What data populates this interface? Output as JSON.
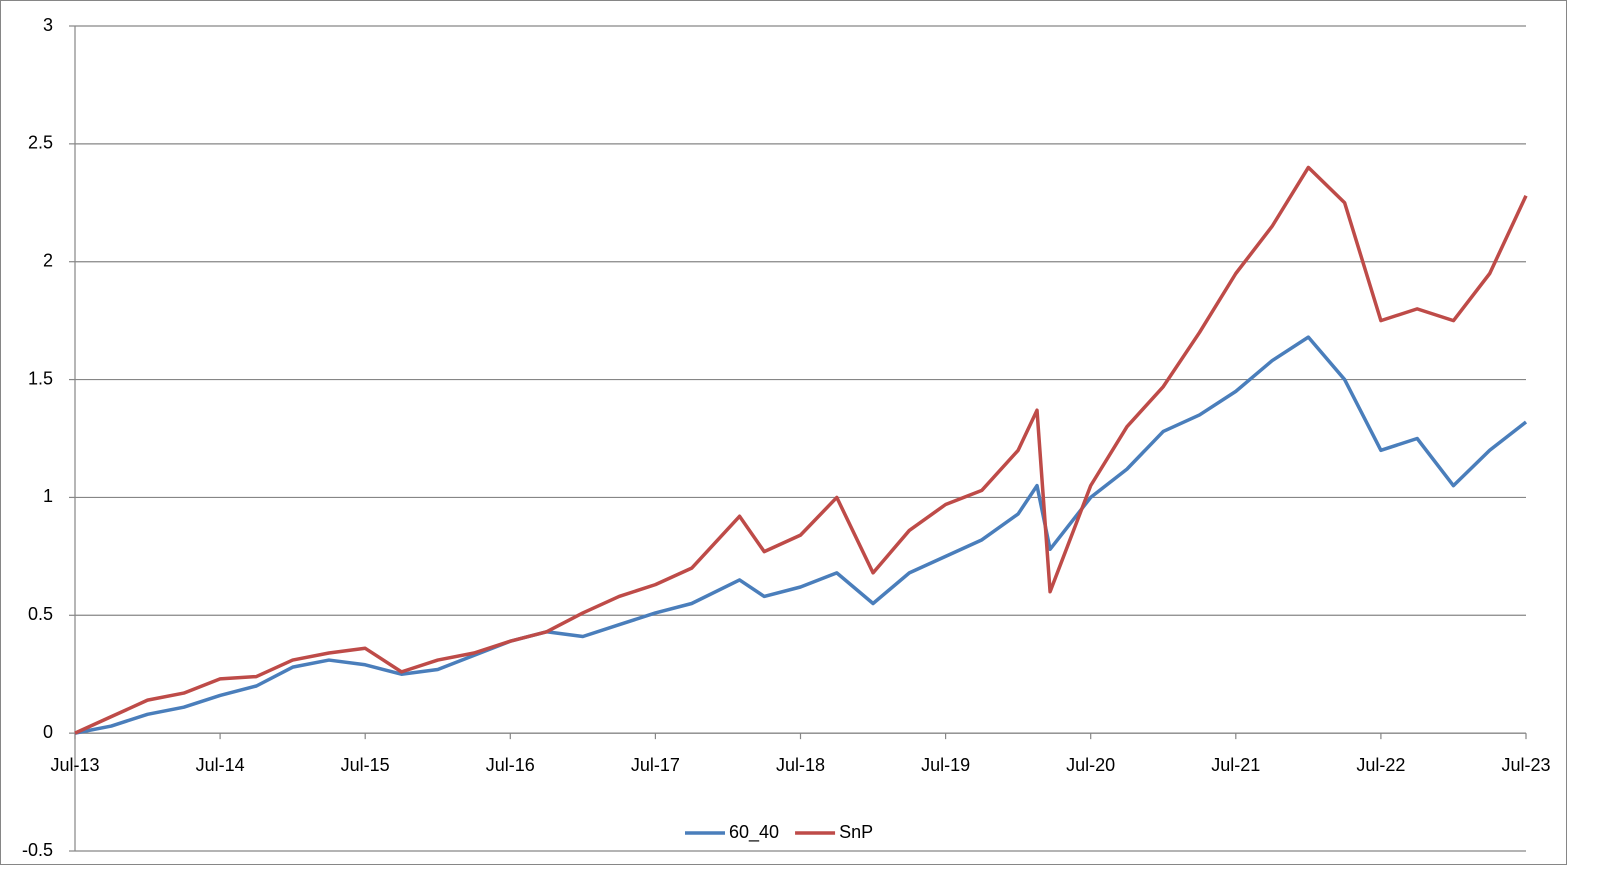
{
  "chart_data": {
    "type": "line",
    "x": [
      2013.5,
      2013.75,
      2014.0,
      2014.25,
      2014.5,
      2014.75,
      2015.0,
      2015.25,
      2015.5,
      2015.75,
      2016.0,
      2016.25,
      2016.5,
      2016.75,
      2017.0,
      2017.25,
      2017.5,
      2017.75,
      2018.08,
      2018.25,
      2018.5,
      2018.75,
      2019.0,
      2019.25,
      2019.5,
      2019.75,
      2020.0,
      2020.13,
      2020.22,
      2020.5,
      2020.75,
      2021.0,
      2021.25,
      2021.5,
      2021.75,
      2022.0,
      2022.25,
      2022.5,
      2022.75,
      2023.0,
      2023.25,
      2023.5
    ],
    "series": [
      {
        "name": "60_40",
        "color": "#4a7ebb",
        "values": [
          0,
          0.03,
          0.08,
          0.11,
          0.16,
          0.2,
          0.28,
          0.31,
          0.29,
          0.25,
          0.27,
          0.33,
          0.39,
          0.43,
          0.41,
          0.46,
          0.51,
          0.55,
          0.65,
          0.58,
          0.62,
          0.68,
          0.55,
          0.68,
          0.75,
          0.82,
          0.93,
          1.05,
          0.78,
          1.0,
          1.12,
          1.28,
          1.35,
          1.45,
          1.58,
          1.68,
          1.5,
          1.2,
          1.25,
          1.05,
          1.2,
          1.32
        ]
      },
      {
        "name": "SnP",
        "color": "#be4b48",
        "values": [
          0,
          0.07,
          0.14,
          0.17,
          0.23,
          0.24,
          0.31,
          0.34,
          0.36,
          0.26,
          0.31,
          0.34,
          0.39,
          0.43,
          0.51,
          0.58,
          0.63,
          0.7,
          0.92,
          0.77,
          0.84,
          1.0,
          0.68,
          0.86,
          0.97,
          1.03,
          1.2,
          1.37,
          0.6,
          1.05,
          1.3,
          1.47,
          1.7,
          1.95,
          2.15,
          2.4,
          2.25,
          1.75,
          1.8,
          1.75,
          1.95,
          2.28
        ]
      }
    ],
    "xlim": [
      2013.5,
      2023.5
    ],
    "xticks": [
      {
        "value": 2013.5,
        "label": "Jul-13"
      },
      {
        "value": 2014.5,
        "label": "Jul-14"
      },
      {
        "value": 2015.5,
        "label": "Jul-15"
      },
      {
        "value": 2016.5,
        "label": "Jul-16"
      },
      {
        "value": 2017.5,
        "label": "Jul-17"
      },
      {
        "value": 2018.5,
        "label": "Jul-18"
      },
      {
        "value": 2019.5,
        "label": "Jul-19"
      },
      {
        "value": 2020.5,
        "label": "Jul-20"
      },
      {
        "value": 2021.5,
        "label": "Jul-21"
      },
      {
        "value": 2022.5,
        "label": "Jul-22"
      },
      {
        "value": 2023.5,
        "label": "Jul-23"
      }
    ],
    "ylim": [
      -0.5,
      3
    ],
    "yticks": [
      -0.5,
      0,
      0.5,
      1,
      1.5,
      2,
      2.5,
      3
    ],
    "grid": true,
    "legend": "bottom"
  }
}
